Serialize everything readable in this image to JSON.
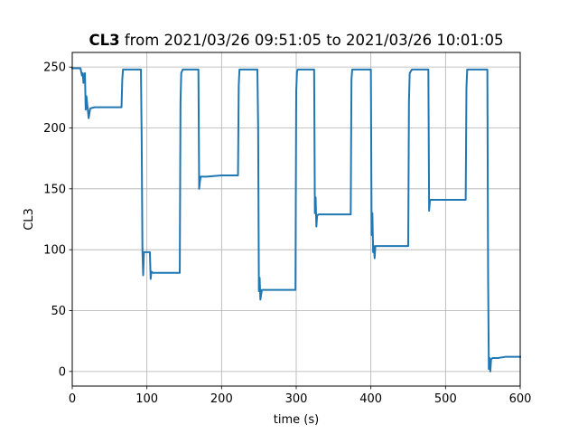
{
  "chart_data": {
    "type": "line",
    "title": {
      "bold": "CL3",
      "rest": " from 2021/03/26 09:51:05 to 2021/03/26 10:01:05"
    },
    "xlabel": "time (s)",
    "ylabel": "CL3",
    "xlim": [
      0,
      600
    ],
    "ylim": [
      -12,
      262
    ],
    "xticks": [
      0,
      100,
      200,
      300,
      400,
      500,
      600
    ],
    "yticks": [
      0,
      50,
      100,
      150,
      200,
      250
    ],
    "grid": true,
    "line_color": "#1f77b4",
    "series": [
      {
        "x": [
          0,
          11,
          12,
          13,
          14,
          15,
          16,
          17,
          18,
          19,
          20,
          21,
          22,
          24,
          30,
          40,
          50,
          60,
          66,
          67,
          68,
          70,
          80,
          92,
          93,
          94,
          95,
          96,
          98,
          104,
          105,
          106,
          108,
          120,
          130,
          144,
          145,
          146,
          148,
          150,
          160,
          169,
          170,
          171,
          172,
          174,
          180,
          200,
          222,
          223,
          224,
          226,
          240,
          248,
          249,
          250,
          251,
          252,
          254,
          270,
          290,
          299,
          300,
          301,
          302,
          305,
          315,
          324,
          325,
          326,
          327,
          328,
          330,
          350,
          373,
          374,
          375,
          377,
          390,
          400,
          401,
          402,
          403,
          404,
          405,
          406,
          408,
          420,
          450,
          451,
          452,
          455,
          470,
          477,
          478,
          479,
          480,
          482,
          500,
          527,
          528,
          529,
          531,
          545,
          556,
          557,
          558,
          559,
          560,
          561,
          563,
          570,
          580,
          600
        ],
        "y": [
          249,
          249,
          246,
          243,
          245,
          237,
          243,
          245,
          215,
          226,
          220,
          214,
          208,
          216,
          217,
          217,
          217,
          217,
          217,
          240,
          248,
          248,
          248,
          248,
          190,
          100,
          79,
          98,
          98,
          98,
          76,
          82,
          81,
          81,
          81,
          81,
          222,
          245,
          248,
          248,
          248,
          248,
          150,
          156,
          160,
          160,
          160,
          161,
          161,
          235,
          248,
          248,
          248,
          248,
          200,
          66,
          77,
          59,
          67,
          67,
          67,
          67,
          230,
          246,
          248,
          248,
          248,
          248,
          130,
          143,
          119,
          128,
          129,
          129,
          129,
          240,
          248,
          248,
          248,
          248,
          112,
          130,
          98,
          103,
          93,
          103,
          103,
          103,
          103,
          222,
          245,
          248,
          248,
          248,
          132,
          140,
          141,
          141,
          141,
          141,
          233,
          248,
          248,
          248,
          248,
          80,
          2,
          11,
          0,
          10,
          11,
          11,
          12,
          12
        ]
      }
    ]
  }
}
